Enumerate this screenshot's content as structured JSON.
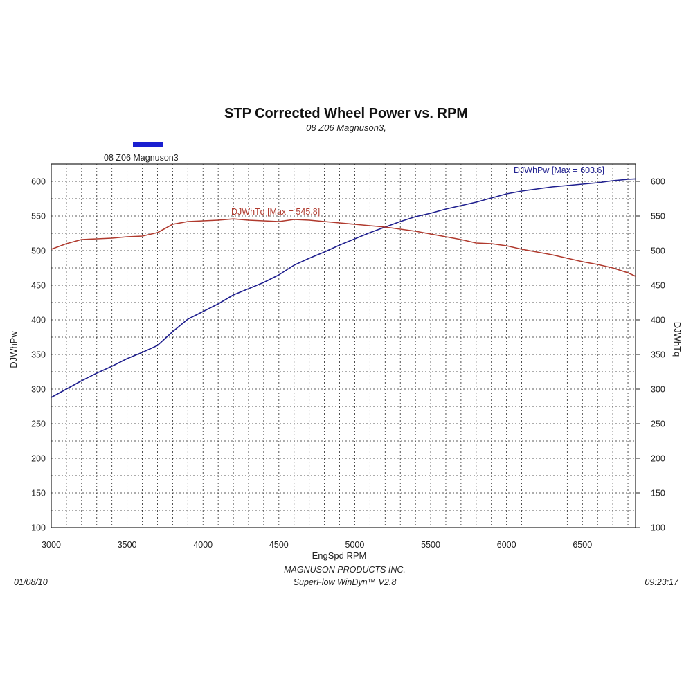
{
  "chart_data": {
    "type": "line",
    "title": "STP Corrected Wheel Power vs. RPM",
    "subtitle": "08 Z06 Magnuson3,",
    "xlabel": "EngSpd  RPM",
    "ylabel_left": "DJWhPw",
    "ylabel_right": "DJWhTq",
    "xlim": [
      3000,
      6850
    ],
    "ylim": [
      100,
      625
    ],
    "x_ticks": [
      "3000",
      "3500",
      "4000",
      "4500",
      "5000",
      "5500",
      "6000",
      "6500"
    ],
    "y_ticks": [
      "100",
      "150",
      "200",
      "250",
      "300",
      "350",
      "400",
      "450",
      "500",
      "550",
      "600"
    ],
    "grid": true,
    "legend": {
      "position": "top-left",
      "entries": [
        {
          "label": "08 Z06 Magnuson3",
          "color": "#1a1fd0"
        }
      ]
    },
    "series": [
      {
        "name": "DJWhPw",
        "max_label": "DJWhPw [Max = 603.6]",
        "color": "#1e1e8e",
        "x": [
          3000,
          3100,
          3200,
          3300,
          3400,
          3500,
          3600,
          3700,
          3800,
          3900,
          4000,
          4100,
          4200,
          4300,
          4400,
          4500,
          4600,
          4700,
          4800,
          4900,
          5000,
          5100,
          5200,
          5300,
          5400,
          5500,
          5600,
          5700,
          5800,
          5900,
          6000,
          6100,
          6200,
          6300,
          6400,
          6500,
          6600,
          6700,
          6800,
          6850
        ],
        "values": [
          288,
          300,
          312,
          323,
          333,
          344,
          353,
          363,
          383,
          401,
          412,
          423,
          436,
          445,
          454,
          465,
          479,
          489,
          498,
          508,
          517,
          526,
          534,
          542,
          549,
          554,
          560,
          565,
          570,
          576,
          582,
          586,
          589,
          592,
          594,
          596,
          598,
          601,
          603,
          603.6
        ]
      },
      {
        "name": "DJWhTq",
        "max_label": "DJWhTq [Max = 545.8]",
        "color": "#b03a2e",
        "x": [
          3000,
          3100,
          3200,
          3300,
          3400,
          3500,
          3600,
          3700,
          3800,
          3900,
          4000,
          4100,
          4200,
          4300,
          4400,
          4500,
          4600,
          4700,
          4800,
          4900,
          5000,
          5100,
          5200,
          5300,
          5400,
          5500,
          5600,
          5700,
          5800,
          5900,
          6000,
          6100,
          6200,
          6300,
          6400,
          6500,
          6600,
          6700,
          6800,
          6850
        ],
        "values": [
          502,
          510,
          516,
          517,
          518,
          520,
          521,
          526,
          538,
          542,
          543,
          544,
          545.8,
          544,
          543,
          542,
          545,
          544,
          542,
          540,
          538,
          536,
          534,
          531,
          528,
          524,
          520,
          516,
          511,
          510,
          507,
          502,
          498,
          494,
          489,
          484,
          480,
          475,
          468,
          463
        ]
      }
    ]
  },
  "footer": {
    "date": "01/08/10",
    "company": "MAGNUSON PRODUCTS INC.",
    "software": "SuperFlow WinDyn™ V2.8",
    "time": "09:23:17"
  }
}
